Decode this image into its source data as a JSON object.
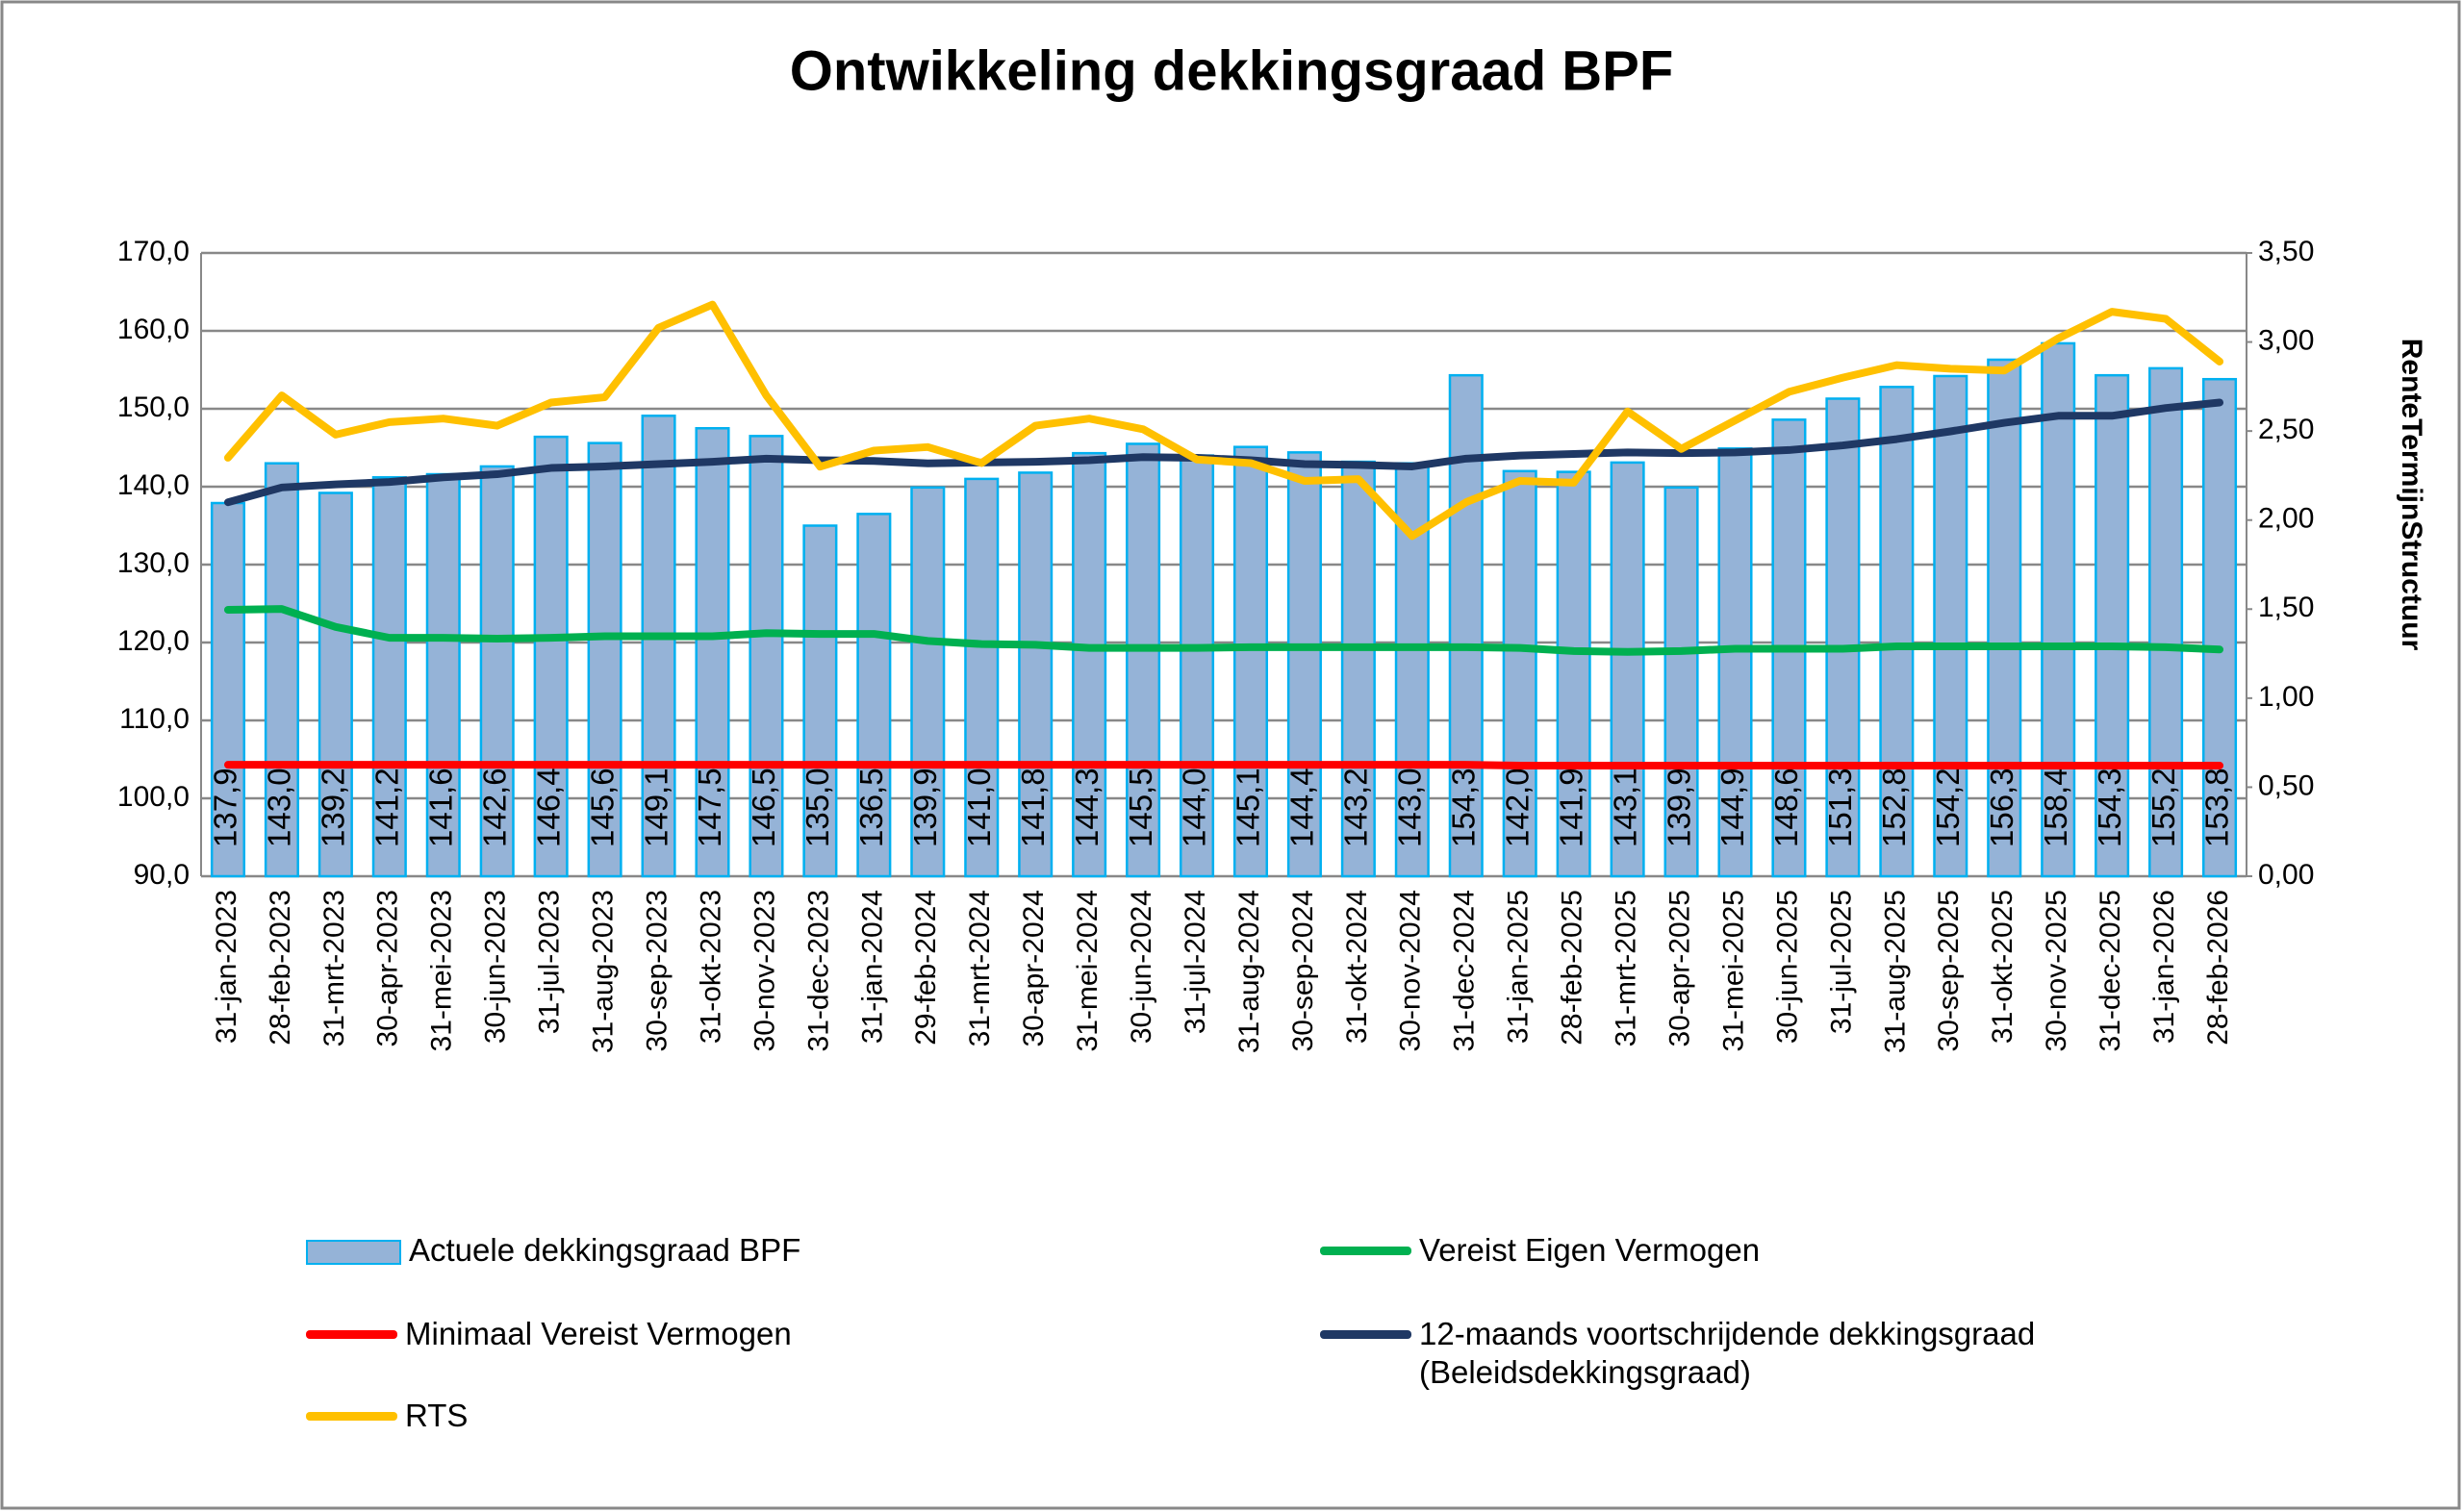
{
  "chart_data": {
    "type": "bar",
    "title": "Ontwikkeling dekkingsgraad BPF",
    "y2_label": "RenteTermijnStructuur",
    "categories": [
      "31-jan-2023",
      "28-feb-2023",
      "31-mrt-2023",
      "30-apr-2023",
      "31-mei-2023",
      "30-jun-2023",
      "31-jul-2023",
      "31-aug-2023",
      "30-sep-2023",
      "31-okt-2023",
      "30-nov-2023",
      "31-dec-2023",
      "31-jan-2024",
      "29-feb-2024",
      "31-mrt-2024",
      "30-apr-2024",
      "31-mei-2024",
      "30-jun-2024",
      "31-jul-2024",
      "31-aug-2024",
      "30-sep-2024",
      "31-okt-2024",
      "30-nov-2024",
      "31-dec-2024",
      "31-jan-2025",
      "28-feb-2025",
      "31-mrt-2025",
      "30-apr-2025",
      "31-mei-2025",
      "30-jun-2025",
      "31-jul-2025",
      "31-aug-2025",
      "30-sep-2025",
      "31-okt-2025",
      "30-nov-2025",
      "31-dec-2025",
      "31-jan-2026",
      "28-feb-2026"
    ],
    "ylim": [
      90,
      170
    ],
    "yticks": [
      {
        "value": 90,
        "label": "90,0"
      },
      {
        "value": 100,
        "label": "100,0"
      },
      {
        "value": 110,
        "label": "110,0"
      },
      {
        "value": 120,
        "label": "120,0"
      },
      {
        "value": 130,
        "label": "130,0"
      },
      {
        "value": 140,
        "label": "140,0"
      },
      {
        "value": 150,
        "label": "150,0"
      },
      {
        "value": 160,
        "label": "160,0"
      },
      {
        "value": 170,
        "label": "170,0"
      }
    ],
    "y2lim": [
      0,
      3.5
    ],
    "y2ticks": [
      {
        "value": 0,
        "label": "0,00"
      },
      {
        "value": 0.5,
        "label": "0,50"
      },
      {
        "value": 1,
        "label": "1,00"
      },
      {
        "value": 1.5,
        "label": "1,50"
      },
      {
        "value": 2,
        "label": "2,00"
      },
      {
        "value": 2.5,
        "label": "2,50"
      },
      {
        "value": 3,
        "label": "3,00"
      },
      {
        "value": 3.5,
        "label": "3,50"
      }
    ],
    "grid": true,
    "series": [
      {
        "name": "Actuele dekkingsgraad BPF",
        "type": "bar",
        "color": "#95b3d7",
        "edge_color": "#00b0f0",
        "values": [
          137.9,
          143.0,
          139.2,
          141.2,
          141.6,
          142.6,
          146.4,
          145.6,
          149.1,
          147.5,
          146.5,
          135.0,
          136.5,
          139.9,
          141.0,
          141.8,
          144.3,
          145.5,
          144.0,
          145.1,
          144.4,
          143.2,
          143.0,
          154.3,
          142.0,
          141.9,
          143.1,
          139.9,
          144.9,
          148.6,
          151.3,
          152.8,
          154.2,
          156.3,
          158.4,
          154.3,
          155.2,
          153.8
        ],
        "value_labels": [
          "137,9",
          "143,0",
          "139,2",
          "141,2",
          "141,6",
          "142,6",
          "146,4",
          "145,6",
          "149,1",
          "147,5",
          "146,5",
          "135,0",
          "136,5",
          "139,9",
          "141,0",
          "141,8",
          "144,3",
          "145,5",
          "144,0",
          "145,1",
          "144,4",
          "143,2",
          "143,0",
          "154,3",
          "142,0",
          "141,9",
          "143,1",
          "139,9",
          "144,9",
          "148,6",
          "151,3",
          "152,8",
          "154,2",
          "156,3",
          "158,4",
          "154,3",
          "155,2",
          "153,8"
        ]
      },
      {
        "name": "Vereist Eigen Vermogen",
        "type": "line",
        "color": "#00b050",
        "values": [
          124.2,
          124.3,
          122.0,
          120.6,
          120.6,
          120.5,
          120.6,
          120.8,
          120.8,
          120.8,
          121.2,
          121.1,
          121.1,
          120.2,
          119.8,
          119.7,
          119.3,
          119.3,
          119.3,
          119.4,
          119.4,
          119.4,
          119.4,
          119.4,
          119.3,
          118.9,
          118.8,
          118.9,
          119.2,
          119.2,
          119.2,
          119.5,
          119.5,
          119.5,
          119.5,
          119.5,
          119.4,
          119.1
        ]
      },
      {
        "name": "Minimaal Vereist Vermogen",
        "type": "line",
        "color": "#ff0000",
        "values": [
          104.3,
          104.3,
          104.3,
          104.3,
          104.3,
          104.3,
          104.3,
          104.3,
          104.3,
          104.3,
          104.3,
          104.3,
          104.3,
          104.3,
          104.3,
          104.3,
          104.3,
          104.3,
          104.3,
          104.3,
          104.3,
          104.3,
          104.3,
          104.3,
          104.2,
          104.2,
          104.2,
          104.2,
          104.2,
          104.2,
          104.2,
          104.2,
          104.2,
          104.2,
          104.2,
          104.2,
          104.2,
          104.2
        ]
      },
      {
        "name": "12-maands voortschrijdende dekkingsgraad (Beleidsdekkingsgraad)",
        "type": "line",
        "color": "#1f3864",
        "values": [
          138.0,
          139.9,
          140.3,
          140.6,
          141.2,
          141.6,
          142.4,
          142.6,
          142.9,
          143.2,
          143.6,
          143.4,
          143.3,
          143.0,
          143.1,
          143.2,
          143.4,
          143.8,
          143.7,
          143.4,
          142.9,
          142.8,
          142.6,
          143.6,
          144.0,
          144.2,
          144.4,
          144.3,
          144.4,
          144.7,
          145.3,
          146.1,
          147.1,
          148.2,
          149.1,
          149.1,
          150.1,
          150.8
        ]
      },
      {
        "name": "RTS",
        "type": "line",
        "axis": "y2",
        "color": "#ffc000",
        "values": [
          2.35,
          2.7,
          2.48,
          2.55,
          2.57,
          2.53,
          2.66,
          2.69,
          3.08,
          3.21,
          2.7,
          2.3,
          2.39,
          2.41,
          2.32,
          2.53,
          2.57,
          2.51,
          2.34,
          2.32,
          2.22,
          2.23,
          1.91,
          2.1,
          2.22,
          2.21,
          2.61,
          2.4,
          2.56,
          2.72,
          2.8,
          2.87,
          2.85,
          2.84,
          3.02,
          3.17,
          3.13,
          2.89
        ]
      }
    ]
  }
}
